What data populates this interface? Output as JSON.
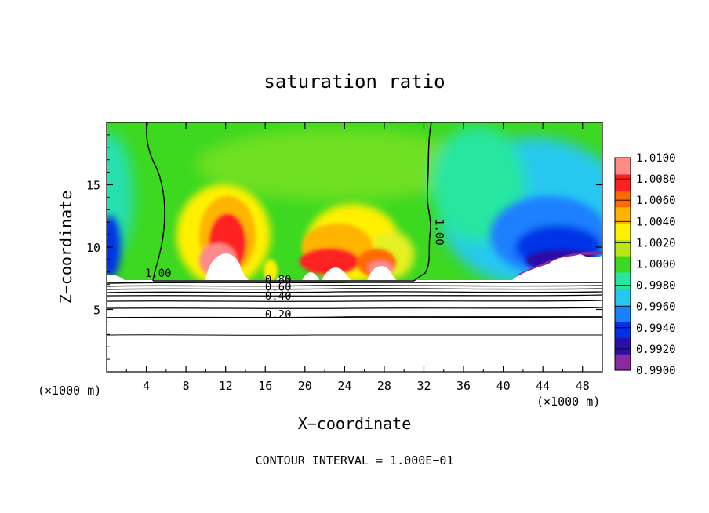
{
  "chart_data": {
    "type": "heatmap",
    "title": "saturation ratio",
    "xlabel": "X−coordinate",
    "ylabel": "Z−coordinate",
    "x_unit_left": "(×1000 m)",
    "x_unit_right": "(×1000 m)",
    "footer": "CONTOUR INTERVAL = 1.000E−01",
    "xlim": [
      0,
      50
    ],
    "ylim": [
      0,
      20
    ],
    "x_ticks": [
      4,
      8,
      12,
      16,
      20,
      24,
      28,
      32,
      36,
      40,
      44,
      48
    ],
    "x_tick_labels": [
      "4",
      "8",
      "12",
      "16",
      "20",
      "24",
      "28",
      "32",
      "36",
      "40",
      "44",
      "48"
    ],
    "y_ticks": [
      5,
      10,
      15
    ],
    "y_tick_labels": [
      "5",
      "10",
      "15"
    ],
    "colorbar": {
      "min": 0.99,
      "max": 1.01,
      "labels": [
        "1.0100",
        "1.0080",
        "1.0060",
        "1.0040",
        "1.0020",
        "1.0000",
        "0.9980",
        "0.9960",
        "0.9940",
        "0.9920",
        "0.9900"
      ],
      "colors": [
        "#8a2a9e",
        "#2a0fa8",
        "#0030e8",
        "#1a80ff",
        "#25c8f0",
        "#28e6a0",
        "#3dd820",
        "#b8e615",
        "#fff000",
        "#ffb400",
        "#ff6a00",
        "#ff2020",
        "#ff8a8a"
      ]
    },
    "contour_labels": [
      {
        "text": "1.00",
        "x": 5.2,
        "y": 7.6
      },
      {
        "text": "1.00",
        "x": 33.2,
        "y": 11.2
      },
      {
        "text": "0.80",
        "x": 17.3,
        "y": 7.1
      },
      {
        "text": "0.60",
        "x": 17.3,
        "y": 6.5
      },
      {
        "text": "0.40",
        "x": 17.3,
        "y": 5.8
      },
      {
        "text": "0.20",
        "x": 17.3,
        "y": 4.3
      }
    ]
  }
}
